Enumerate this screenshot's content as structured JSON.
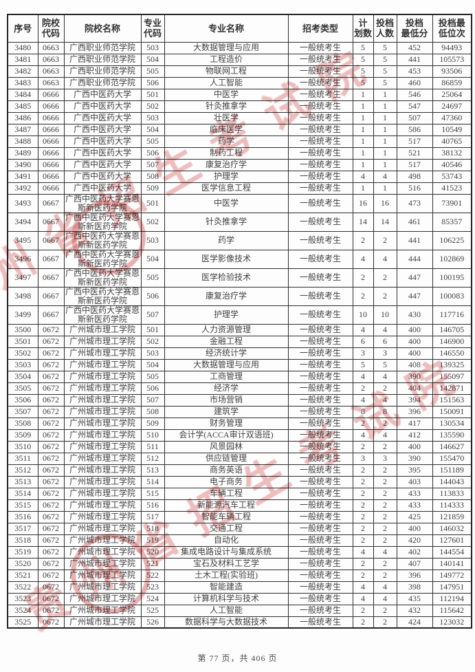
{
  "watermark": {
    "text": "贵州省招生考试院",
    "color": "#d65c5c",
    "seal_glyph": "★"
  },
  "footer": {
    "text": "第 77 页，共 406 页"
  },
  "table": {
    "headers": [
      "序号",
      "院校\n代码",
      "院校名称",
      "专业\n代码",
      "专业名称",
      "招考类型",
      "计\n划数",
      "投档\n人数",
      "投档\n最低分",
      "投档最\n低位次"
    ],
    "rows": [
      [
        "3480",
        "0663",
        "广西职业师范学院",
        "503",
        "大数据管理与应用",
        "一般统考生",
        "5",
        "5",
        "452",
        "94493"
      ],
      [
        "3481",
        "0663",
        "广西职业师范学院",
        "504",
        "工程造价",
        "一般统考生",
        "5",
        "5",
        "441",
        "105573"
      ],
      [
        "3482",
        "0663",
        "广西职业师范学院",
        "505",
        "物联网工程",
        "一般统考生",
        "5",
        "5",
        "453",
        "93506"
      ],
      [
        "3483",
        "0663",
        "广西职业师范学院",
        "506",
        "人工智能",
        "一般统考生",
        "5",
        "5",
        "460",
        "86859"
      ],
      [
        "3484",
        "0666",
        "广西中医药大学",
        "501",
        "中医学",
        "一般统考生",
        "1",
        "1",
        "546",
        "25064"
      ],
      [
        "3485",
        "0666",
        "广西中医药大学",
        "502",
        "针灸推拿学",
        "一般统考生",
        "1",
        "1",
        "547",
        "24697"
      ],
      [
        "3486",
        "0666",
        "广西中医药大学",
        "503",
        "壮医学",
        "一般统考生",
        "1",
        "1",
        "507",
        "47360"
      ],
      [
        "3487",
        "0666",
        "广西中医药大学",
        "504",
        "临床医学",
        "一般统考生",
        "1",
        "1",
        "586",
        "10549"
      ],
      [
        "3488",
        "0666",
        "广西中医药大学",
        "505",
        "药学",
        "一般统考生",
        "1",
        "1",
        "517",
        "40765"
      ],
      [
        "3489",
        "0666",
        "广西中医药大学",
        "506",
        "制药工程",
        "一般统考生",
        "1",
        "1",
        "521",
        "38132"
      ],
      [
        "3490",
        "0666",
        "广西中医药大学",
        "507",
        "康复治疗学",
        "一般统考生",
        "1",
        "1",
        "517",
        "40546"
      ],
      [
        "3491",
        "0666",
        "广西中医药大学",
        "508",
        "护理学",
        "一般统考生",
        "4",
        "4",
        "498",
        "53743"
      ],
      [
        "3492",
        "0666",
        "广西中医药大学",
        "509",
        "医学信息工程",
        "一般统考生",
        "1",
        "1",
        "516",
        "41523"
      ],
      [
        "3493",
        "0667",
        "广西中医药大学赛恩斯新医药学院",
        "501",
        "中医学",
        "一般统考生",
        "16",
        "16",
        "473",
        "73901"
      ],
      [
        "3494",
        "0667",
        "广西中医药大学赛恩斯新医药学院",
        "502",
        "针灸推拿学",
        "一般统考生",
        "14",
        "14",
        "461",
        "85357"
      ],
      [
        "3495",
        "0667",
        "广西中医药大学赛恩斯新医药学院",
        "503",
        "药学",
        "一般统考生",
        "2",
        "2",
        "441",
        "106225"
      ],
      [
        "3496",
        "0667",
        "广西中医药大学赛恩斯新医药学院",
        "504",
        "医学影像技术",
        "一般统考生",
        "4",
        "4",
        "444",
        "102869"
      ],
      [
        "3497",
        "0667",
        "广西中医药大学赛恩斯新医药学院",
        "505",
        "医学检验技术",
        "一般统考生",
        "2",
        "2",
        "447",
        "100195"
      ],
      [
        "3498",
        "0667",
        "广西中医药大学赛恩斯新医药学院",
        "506",
        "康复治疗学",
        "一般统考生",
        "2",
        "2",
        "447",
        "100083"
      ],
      [
        "3499",
        "0667",
        "广西中医药大学赛恩斯新医药学院",
        "507",
        "护理学",
        "一般统考生",
        "10",
        "10",
        "430",
        "117716"
      ],
      [
        "3500",
        "0672",
        "广州城市理工学院",
        "501",
        "人力资源管理",
        "一般统考生",
        "4",
        "4",
        "400",
        "146705"
      ],
      [
        "3501",
        "0672",
        "广州城市理工学院",
        "502",
        "金融工程",
        "一般统考生",
        "6",
        "6",
        "400",
        "146900"
      ],
      [
        "3502",
        "0672",
        "广州城市理工学院",
        "503",
        "经济统计学",
        "一般统考生",
        "3",
        "3",
        "400",
        "146550"
      ],
      [
        "3503",
        "0672",
        "广州城市理工学院",
        "504",
        "大数据管理与应用",
        "一般统考生",
        "5",
        "5",
        "408",
        "139325"
      ],
      [
        "3504",
        "0672",
        "广州城市理工学院",
        "505",
        "工商管理",
        "一般统考生",
        "4",
        "4",
        "390",
        "155097"
      ],
      [
        "3505",
        "0672",
        "广州城市理工学院",
        "506",
        "经济学",
        "一般统考生",
        "2",
        "2",
        "404",
        "142871"
      ],
      [
        "3506",
        "0672",
        "广州城市理工学院",
        "507",
        "市场营销",
        "一般统考生",
        "4",
        "4",
        "394",
        "151563"
      ],
      [
        "3507",
        "0672",
        "广州城市理工学院",
        "508",
        "建筑学",
        "一般统考生",
        "8",
        "8",
        "396",
        "150091"
      ],
      [
        "3508",
        "0672",
        "广州城市理工学院",
        "509",
        "财务管理",
        "一般统考生",
        "2",
        "2",
        "417",
        "130534"
      ],
      [
        "3509",
        "0672",
        "广州城市理工学院",
        "510",
        "会计学(ACCA审计双语班)",
        "一般统考生",
        "4",
        "4",
        "412",
        "135590"
      ],
      [
        "3510",
        "0672",
        "广州城市理工学院",
        "511",
        "风景园林",
        "一般统考生",
        "2",
        "2",
        "400",
        "146627"
      ],
      [
        "3511",
        "0672",
        "广州城市理工学院",
        "512",
        "供应链管理",
        "一般统考生",
        "3",
        "3",
        "390",
        "155470"
      ],
      [
        "3512",
        "0672",
        "广州城市理工学院",
        "513",
        "商务英语",
        "一般统考生",
        "2",
        "2",
        "395",
        "151189"
      ],
      [
        "3513",
        "0672",
        "广州城市理工学院",
        "514",
        "电子商务",
        "一般统考生",
        "2",
        "2",
        "403",
        "144043"
      ],
      [
        "3514",
        "0672",
        "广州城市理工学院",
        "515",
        "车辆工程",
        "一般统考生",
        "2",
        "2",
        "433",
        "113833"
      ],
      [
        "3515",
        "0672",
        "广州城市理工学院",
        "516",
        "新能源汽车工程",
        "一般统考生",
        "2",
        "2",
        "433",
        "114333"
      ],
      [
        "3516",
        "0672",
        "广州城市理工学院",
        "517",
        "智能车辆工程",
        "一般统考生",
        "2",
        "2",
        "425",
        "121859"
      ],
      [
        "3517",
        "0672",
        "广州城市理工学院",
        "518",
        "交通工程",
        "一般统考生",
        "2",
        "2",
        "400",
        "146032"
      ],
      [
        "3518",
        "0672",
        "广州城市理工学院",
        "519",
        "自动化",
        "一般统考生",
        "2",
        "2",
        "420",
        "127601"
      ],
      [
        "3519",
        "0672",
        "广州城市理工学院",
        "520",
        "集成电路设计与集成系统",
        "一般统考生",
        "4",
        "4",
        "402",
        "144554"
      ],
      [
        "3520",
        "0672",
        "广州城市理工学院",
        "521",
        "宝石及材料工艺学",
        "一般统考生",
        "2",
        "2",
        "407",
        "140141"
      ],
      [
        "3521",
        "0672",
        "广州城市理工学院",
        "522",
        "土木工程(实验班)",
        "一般统考生",
        "2",
        "2",
        "396",
        "149772"
      ],
      [
        "3522",
        "0672",
        "广州城市理工学院",
        "523",
        "智能建造",
        "一般统考生",
        "4",
        "4",
        "398",
        "147951"
      ],
      [
        "3523",
        "0672",
        "广州城市理工学院",
        "524",
        "计算机科学与技术",
        "一般统考生",
        "4",
        "4",
        "435",
        "112194"
      ],
      [
        "3524",
        "0672",
        "广州城市理工学院",
        "525",
        "人工智能",
        "一般统考生",
        "2",
        "2",
        "432",
        "115642"
      ],
      [
        "3525",
        "0672",
        "广州城市理工学院",
        "526",
        "数据科学与大数据技术",
        "一般统考生",
        "2",
        "2",
        "424",
        "123032"
      ]
    ]
  }
}
